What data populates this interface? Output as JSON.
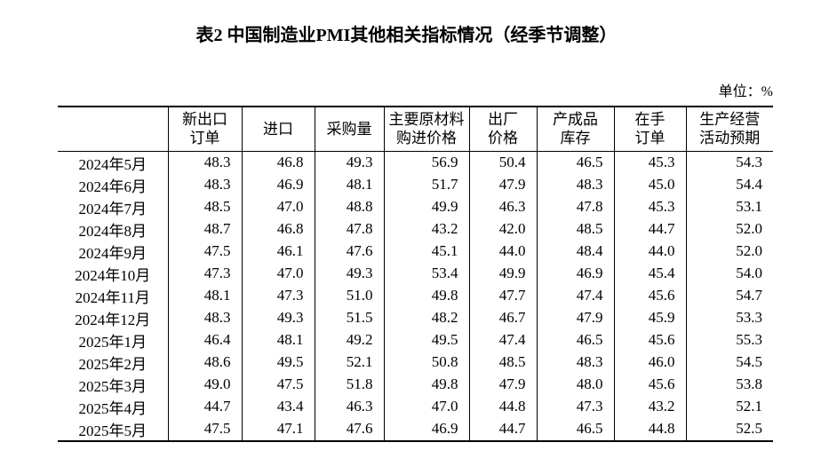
{
  "page": {
    "title": "表2 中国制造业PMI其他相关指标情况（经季节调整）",
    "unit_label": "单位：%"
  },
  "table": {
    "columns": [
      {
        "label": ""
      },
      {
        "label": "新出口\n订单"
      },
      {
        "label": "进口"
      },
      {
        "label": "采购量"
      },
      {
        "label": "主要原材料\n购进价格"
      },
      {
        "label": "出厂\n价格"
      },
      {
        "label": "产成品\n库存"
      },
      {
        "label": "在手\n订单"
      },
      {
        "label": "生产经营\n活动预期"
      }
    ],
    "rows": [
      {
        "month": "2024年5月",
        "values": [
          "48.3",
          "46.8",
          "49.3",
          "56.9",
          "50.4",
          "46.5",
          "45.3",
          "54.3"
        ]
      },
      {
        "month": "2024年6月",
        "values": [
          "48.3",
          "46.9",
          "48.1",
          "51.7",
          "47.9",
          "48.3",
          "45.0",
          "54.4"
        ]
      },
      {
        "month": "2024年7月",
        "values": [
          "48.5",
          "47.0",
          "48.8",
          "49.9",
          "46.3",
          "47.8",
          "45.3",
          "53.1"
        ]
      },
      {
        "month": "2024年8月",
        "values": [
          "48.7",
          "46.8",
          "47.8",
          "43.2",
          "42.0",
          "48.5",
          "44.7",
          "52.0"
        ]
      },
      {
        "month": "2024年9月",
        "values": [
          "47.5",
          "46.1",
          "47.6",
          "45.1",
          "44.0",
          "48.4",
          "44.0",
          "52.0"
        ]
      },
      {
        "month": "2024年10月",
        "values": [
          "47.3",
          "47.0",
          "49.3",
          "53.4",
          "49.9",
          "46.9",
          "45.4",
          "54.0"
        ]
      },
      {
        "month": "2024年11月",
        "values": [
          "48.1",
          "47.3",
          "51.0",
          "49.8",
          "47.7",
          "47.4",
          "45.6",
          "54.7"
        ]
      },
      {
        "month": "2024年12月",
        "values": [
          "48.3",
          "49.3",
          "51.5",
          "48.2",
          "46.7",
          "47.9",
          "45.9",
          "53.3"
        ]
      },
      {
        "month": "2025年1月",
        "values": [
          "46.4",
          "48.1",
          "49.2",
          "49.5",
          "47.4",
          "46.5",
          "45.6",
          "55.3"
        ]
      },
      {
        "month": "2025年2月",
        "values": [
          "48.6",
          "49.5",
          "52.1",
          "50.8",
          "48.5",
          "48.3",
          "46.0",
          "54.5"
        ]
      },
      {
        "month": "2025年3月",
        "values": [
          "49.0",
          "47.5",
          "51.8",
          "49.8",
          "47.9",
          "48.0",
          "45.6",
          "53.8"
        ]
      },
      {
        "month": "2025年4月",
        "values": [
          "44.7",
          "43.4",
          "46.3",
          "47.0",
          "44.8",
          "47.3",
          "43.2",
          "52.1"
        ]
      },
      {
        "month": "2025年5月",
        "values": [
          "47.5",
          "47.1",
          "47.6",
          "46.9",
          "44.7",
          "46.5",
          "44.8",
          "52.5"
        ]
      }
    ]
  }
}
